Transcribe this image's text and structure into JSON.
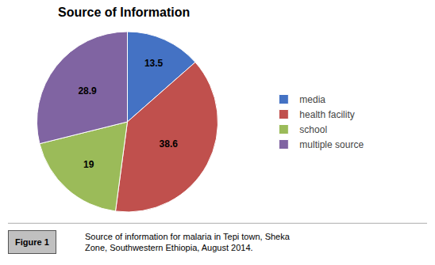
{
  "chart_data": {
    "type": "pie",
    "title": "Source of Information",
    "categories": [
      "media",
      "health facility",
      "school",
      "multiple source"
    ],
    "values": [
      13.5,
      38.6,
      19.0,
      28.9
    ],
    "colors": [
      "#4472C4",
      "#C0504D",
      "#9BBB59",
      "#8064A2"
    ],
    "data_labels": true,
    "legend": "right",
    "annotations": [
      "Figure 1",
      "Source of information for malaria in Tepi town, Sheka\nZone, Southwestern Ethiopia, August 2014."
    ]
  }
}
